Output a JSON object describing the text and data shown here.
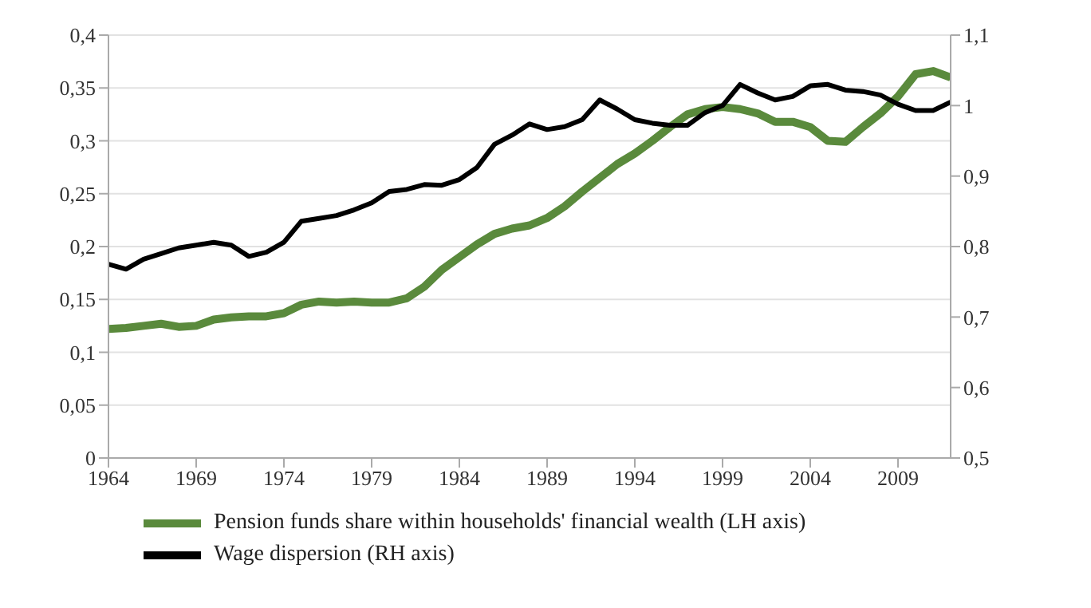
{
  "chart_data": {
    "type": "line",
    "x": [
      1964,
      1965,
      1966,
      1967,
      1968,
      1969,
      1970,
      1971,
      1972,
      1973,
      1974,
      1975,
      1976,
      1977,
      1978,
      1979,
      1980,
      1981,
      1982,
      1983,
      1984,
      1985,
      1986,
      1987,
      1988,
      1989,
      1990,
      1991,
      1992,
      1993,
      1994,
      1995,
      1996,
      1997,
      1998,
      1999,
      2000,
      2001,
      2002,
      2003,
      2004,
      2005,
      2006,
      2007,
      2008,
      2009,
      2010,
      2011,
      2012
    ],
    "series": [
      {
        "name": "Pension funds share within households' financial wealth (LH axis)",
        "color": "#5a8a3c",
        "values": [
          0.122,
          0.123,
          0.125,
          0.127,
          0.124,
          0.125,
          0.131,
          0.133,
          0.134,
          0.134,
          0.137,
          0.145,
          0.148,
          0.147,
          0.148,
          0.147,
          0.147,
          0.151,
          0.162,
          0.178,
          0.19,
          0.202,
          0.212,
          0.217,
          0.22,
          0.227,
          0.238,
          0.252,
          0.265,
          0.278,
          0.288,
          0.3,
          0.313,
          0.325,
          0.33,
          0.332,
          0.33,
          0.326,
          0.318,
          0.318,
          0.313,
          0.3,
          0.299,
          0.313,
          0.326,
          0.342,
          0.363,
          0.366,
          0.36
        ]
      },
      {
        "name": "Wage dispersion (RH axis)",
        "color": "#000000",
        "axis": "y2",
        "values": [
          0.775,
          0.768,
          0.782,
          0.79,
          0.798,
          0.802,
          0.806,
          0.802,
          0.786,
          0.792,
          0.806,
          0.836,
          0.84,
          0.844,
          0.852,
          0.862,
          0.878,
          0.881,
          0.888,
          0.887,
          0.895,
          0.912,
          0.945,
          0.958,
          0.974,
          0.966,
          0.97,
          0.98,
          1.008,
          0.995,
          0.98,
          0.975,
          0.972,
          0.972,
          0.99,
          1.0,
          1.03,
          1.018,
          1.008,
          1.013,
          1.028,
          1.03,
          1.022,
          1.02,
          1.015,
          1.002,
          0.993,
          0.993,
          1.005
        ]
      }
    ],
    "xlim": [
      1964,
      2012
    ],
    "xticks": [
      1964,
      1969,
      1974,
      1979,
      1984,
      1989,
      1994,
      1999,
      2004,
      2009
    ],
    "ylim": [
      0,
      0.4
    ],
    "yticks": [
      0,
      {
        "value": 0.05,
        "label": "0,05"
      },
      {
        "value": 0.1,
        "label": "0,1"
      },
      {
        "value": 0.15,
        "label": "0,15"
      },
      {
        "value": 0.2,
        "label": "0,2"
      },
      {
        "value": 0.25,
        "label": "0,25"
      },
      {
        "value": 0.3,
        "label": "0,3"
      },
      {
        "value": 0.35,
        "label": "0,35"
      },
      {
        "value": 0.4,
        "label": "0,4"
      }
    ],
    "y2lim": [
      0.5,
      1.1
    ],
    "y2ticks": [
      {
        "value": 0.5,
        "label": "0,5"
      },
      {
        "value": 0.6,
        "label": "0,6"
      },
      {
        "value": 0.7,
        "label": "0,7"
      },
      {
        "value": 0.8,
        "label": "0,8"
      },
      {
        "value": 0.9,
        "label": "0,9"
      },
      1,
      {
        "value": 1.1,
        "label": "1,1"
      }
    ],
    "grid": "y",
    "legend": "bottom left",
    "marker": "none",
    "line_style": "solid"
  }
}
